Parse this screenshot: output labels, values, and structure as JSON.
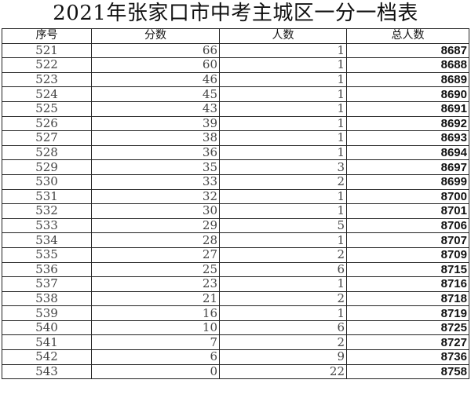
{
  "title": "2021年张家口市中考主城区一分一档表",
  "table": {
    "headers": [
      "序号",
      "分数",
      "人数",
      "总人数"
    ],
    "rows": [
      [
        "521",
        "66",
        "1",
        "8687"
      ],
      [
        "522",
        "60",
        "1",
        "8688"
      ],
      [
        "523",
        "46",
        "1",
        "8689"
      ],
      [
        "524",
        "45",
        "1",
        "8690"
      ],
      [
        "525",
        "43",
        "1",
        "8691"
      ],
      [
        "526",
        "39",
        "1",
        "8692"
      ],
      [
        "527",
        "38",
        "1",
        "8693"
      ],
      [
        "528",
        "36",
        "1",
        "8694"
      ],
      [
        "529",
        "35",
        "3",
        "8697"
      ],
      [
        "530",
        "33",
        "2",
        "8699"
      ],
      [
        "531",
        "32",
        "1",
        "8700"
      ],
      [
        "532",
        "30",
        "1",
        "8701"
      ],
      [
        "533",
        "29",
        "5",
        "8706"
      ],
      [
        "534",
        "28",
        "1",
        "8707"
      ],
      [
        "535",
        "27",
        "2",
        "8709"
      ],
      [
        "536",
        "25",
        "6",
        "8715"
      ],
      [
        "537",
        "23",
        "1",
        "8716"
      ],
      [
        "538",
        "21",
        "2",
        "8718"
      ],
      [
        "539",
        "16",
        "1",
        "8719"
      ],
      [
        "540",
        "10",
        "6",
        "8725"
      ],
      [
        "541",
        "7",
        "2",
        "8727"
      ],
      [
        "542",
        "6",
        "9",
        "8736"
      ],
      [
        "543",
        "0",
        "22",
        "8758"
      ]
    ]
  }
}
